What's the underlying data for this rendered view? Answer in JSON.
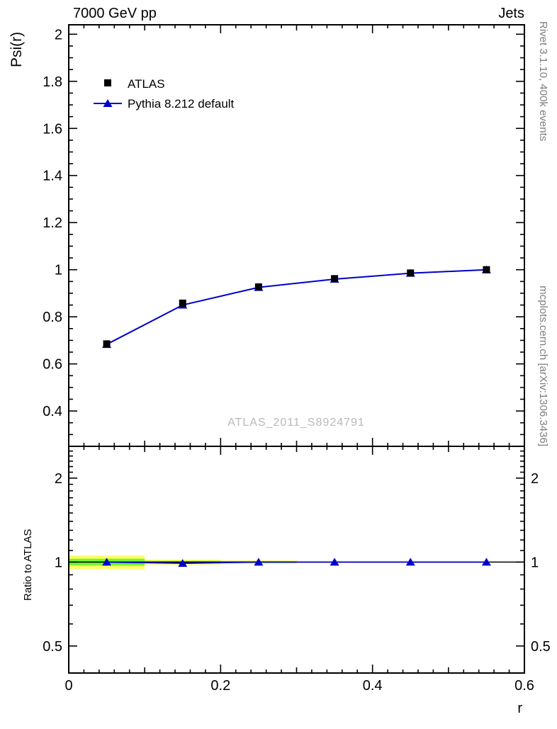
{
  "header": {
    "left": "7000 GeV pp",
    "right": "Jets"
  },
  "right_margin": {
    "top_text": "Rivet 3.1.10,  400k events",
    "bottom_text": "mcplots.cern.ch [arXiv:1306.3436]"
  },
  "watermark": "ATLAS_2011_S8924791",
  "colors": {
    "pythia_blue": "#0000cc",
    "atlas_black": "#000000",
    "band_yellow": "#ffff00",
    "band_green": "#00ee00",
    "frame": "#000000"
  },
  "chart_data": [
    {
      "type": "line",
      "panel": "main",
      "title": "",
      "ylabel": "Psi(r)",
      "xlim": [
        0,
        0.6
      ],
      "ylim": [
        0.25,
        2.04
      ],
      "yscale": "linear",
      "yticks": [
        0.4,
        0.6,
        0.8,
        1,
        1.2,
        1.4,
        1.6,
        1.8,
        2
      ],
      "x": [
        0.05,
        0.15,
        0.25,
        0.35,
        0.45,
        0.55
      ],
      "series": [
        {
          "name": "ATLAS",
          "marker": "square",
          "color": "#000000",
          "values": [
            0.685,
            0.858,
            0.927,
            0.962,
            0.986,
            1.0
          ]
        },
        {
          "name": "Pythia 8.212 default",
          "marker": "triangle",
          "color": "#0000cc",
          "values": [
            0.683,
            0.85,
            0.925,
            0.96,
            0.985,
            1.0
          ]
        }
      ],
      "legend_position": "top-left"
    },
    {
      "type": "line",
      "panel": "ratio",
      "ylabel": "Ratio to ATLAS",
      "xlabel": "r",
      "xlim": [
        0,
        0.6
      ],
      "ylim": [
        0.4,
        2.6
      ],
      "yscale": "log",
      "yticks": [
        0.5,
        1,
        2
      ],
      "xticks": [
        0,
        0.2,
        0.4,
        0.6
      ],
      "x": [
        0.05,
        0.15,
        0.25,
        0.35,
        0.45,
        0.55
      ],
      "series": [
        {
          "name": "Pythia 8.212 default / ATLAS",
          "marker": "triangle",
          "color": "#0000cc",
          "values": [
            1.0,
            0.99,
            1.0,
            1.0,
            1.0,
            1.0
          ]
        }
      ],
      "reference_line": 1,
      "uncertainty_bands": [
        {
          "x0": 0.0,
          "x1": 0.1,
          "yellow": 0.055,
          "green": 0.028
        },
        {
          "x0": 0.1,
          "x1": 0.2,
          "yellow": 0.02,
          "green": 0.01
        },
        {
          "x0": 0.2,
          "x1": 0.3,
          "yellow": 0.013,
          "green": 0.007
        }
      ]
    }
  ]
}
